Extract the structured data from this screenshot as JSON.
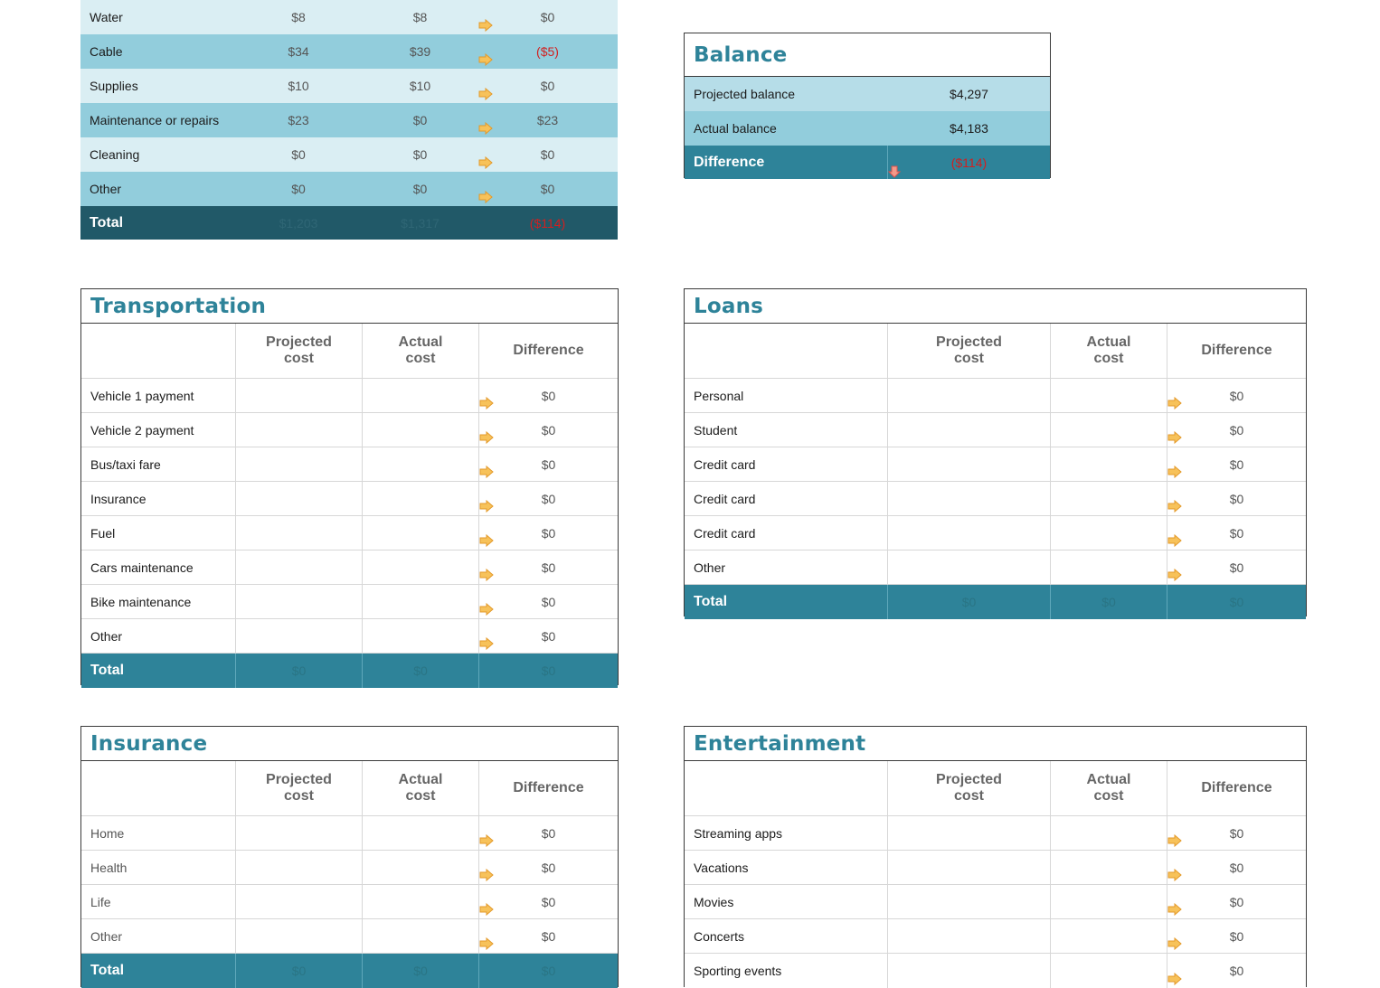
{
  "colors": {
    "title_teal": "#2e8399",
    "total_teal": "#2e8399",
    "total_dark": "#215968",
    "row_light": "#daeef3",
    "row_mid": "#92cddc",
    "negative_red": "#d21f1f",
    "arrow_orange": "#f7c25a"
  },
  "headers": {
    "projected": "Projected cost",
    "actual": "Actual cost",
    "difference": "Difference"
  },
  "housing_continued": {
    "rows": [
      {
        "label": "Water",
        "projected": "$8",
        "actual": "$8",
        "difference": "$0",
        "icon": "arrow-right-icon"
      },
      {
        "label": "Cable",
        "projected": "$34",
        "actual": "$39",
        "difference": "($5)",
        "icon": "arrow-right-icon"
      },
      {
        "label": "Supplies",
        "projected": "$10",
        "actual": "$10",
        "difference": "$0",
        "icon": "arrow-right-icon"
      },
      {
        "label": "Maintenance or repairs",
        "projected": "$23",
        "actual": "$0",
        "difference": "$23",
        "icon": "arrow-right-icon"
      },
      {
        "label": "Cleaning",
        "projected": "$0",
        "actual": "$0",
        "difference": "$0",
        "icon": "arrow-right-icon"
      },
      {
        "label": "Other",
        "projected": "$0",
        "actual": "$0",
        "difference": "$0",
        "icon": "arrow-right-icon"
      }
    ],
    "total": {
      "label": "Total",
      "projected": "$1,203",
      "actual": "$1,317",
      "difference": "($114)"
    }
  },
  "balance": {
    "title": "Balance",
    "projected_label": "Projected balance",
    "projected_value": "$4,297",
    "actual_label": "Actual balance",
    "actual_value": "$4,183",
    "difference_label": "Difference",
    "difference_value": "($114)",
    "difference_icon": "arrow-down-icon"
  },
  "transportation": {
    "title": "Transportation",
    "rows": [
      {
        "label": "Vehicle 1 payment",
        "projected": "",
        "actual": "",
        "difference": "$0"
      },
      {
        "label": "Vehicle 2 payment",
        "projected": "",
        "actual": "",
        "difference": "$0"
      },
      {
        "label": "Bus/taxi fare",
        "projected": "",
        "actual": "",
        "difference": "$0"
      },
      {
        "label": "Insurance",
        "projected": "",
        "actual": "",
        "difference": "$0"
      },
      {
        "label": "Fuel",
        "projected": "",
        "actual": "",
        "difference": "$0"
      },
      {
        "label": "Cars maintenance",
        "projected": "",
        "actual": "",
        "difference": "$0"
      },
      {
        "label": "Bike maintenance",
        "projected": "",
        "actual": "",
        "difference": "$0"
      },
      {
        "label": "Other",
        "projected": "",
        "actual": "",
        "difference": "$0"
      }
    ],
    "total": {
      "label": "Total",
      "projected": "$0",
      "actual": "$0",
      "difference": "$0"
    }
  },
  "loans": {
    "title": "Loans",
    "rows": [
      {
        "label": "Personal",
        "projected": "",
        "actual": "",
        "difference": "$0"
      },
      {
        "label": "Student",
        "projected": "",
        "actual": "",
        "difference": "$0"
      },
      {
        "label": "Credit card",
        "projected": "",
        "actual": "",
        "difference": "$0"
      },
      {
        "label": "Credit card",
        "projected": "",
        "actual": "",
        "difference": "$0"
      },
      {
        "label": "Credit card",
        "projected": "",
        "actual": "",
        "difference": "$0"
      },
      {
        "label": "Other",
        "projected": "",
        "actual": "",
        "difference": "$0"
      }
    ],
    "total": {
      "label": "Total",
      "projected": "$0",
      "actual": "$0",
      "difference": "$0"
    }
  },
  "insurance": {
    "title": "Insurance",
    "rows": [
      {
        "label": "Home",
        "projected": "",
        "actual": "",
        "difference": "$0"
      },
      {
        "label": "Health",
        "projected": "",
        "actual": "",
        "difference": "$0"
      },
      {
        "label": "Life",
        "projected": "",
        "actual": "",
        "difference": "$0"
      },
      {
        "label": "Other",
        "projected": "",
        "actual": "",
        "difference": "$0"
      }
    ],
    "total": {
      "label": "Total",
      "projected": "$0",
      "actual": "$0",
      "difference": "$0"
    }
  },
  "entertainment": {
    "title": "Entertainment",
    "rows": [
      {
        "label": "Streaming apps",
        "projected": "",
        "actual": "",
        "difference": "$0"
      },
      {
        "label": "Vacations",
        "projected": "",
        "actual": "",
        "difference": "$0"
      },
      {
        "label": "Movies",
        "projected": "",
        "actual": "",
        "difference": "$0"
      },
      {
        "label": "Concerts",
        "projected": "",
        "actual": "",
        "difference": "$0"
      },
      {
        "label": "Sporting events",
        "projected": "",
        "actual": "",
        "difference": "$0"
      }
    ]
  }
}
